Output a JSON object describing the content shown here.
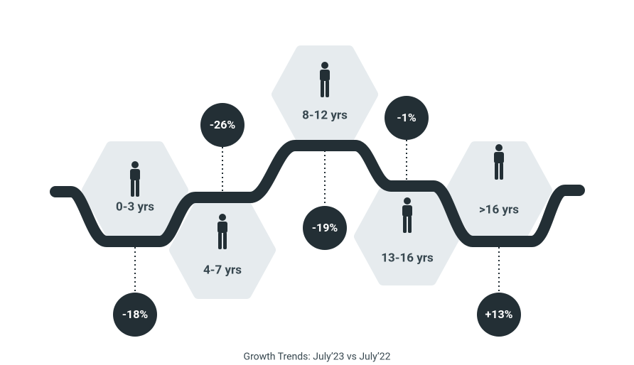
{
  "stages": [
    {
      "label": "0-3 yrs",
      "change": "-18%"
    },
    {
      "label": "4-7 yrs",
      "change": "-26%"
    },
    {
      "label": "8-12 yrs",
      "change": "-19%"
    },
    {
      "label": "13-16 yrs",
      "change": "-1%"
    },
    {
      "label": ">16 yrs",
      "change": "+13%"
    }
  ],
  "caption": "Growth Trends: July’23 vs July’22"
}
